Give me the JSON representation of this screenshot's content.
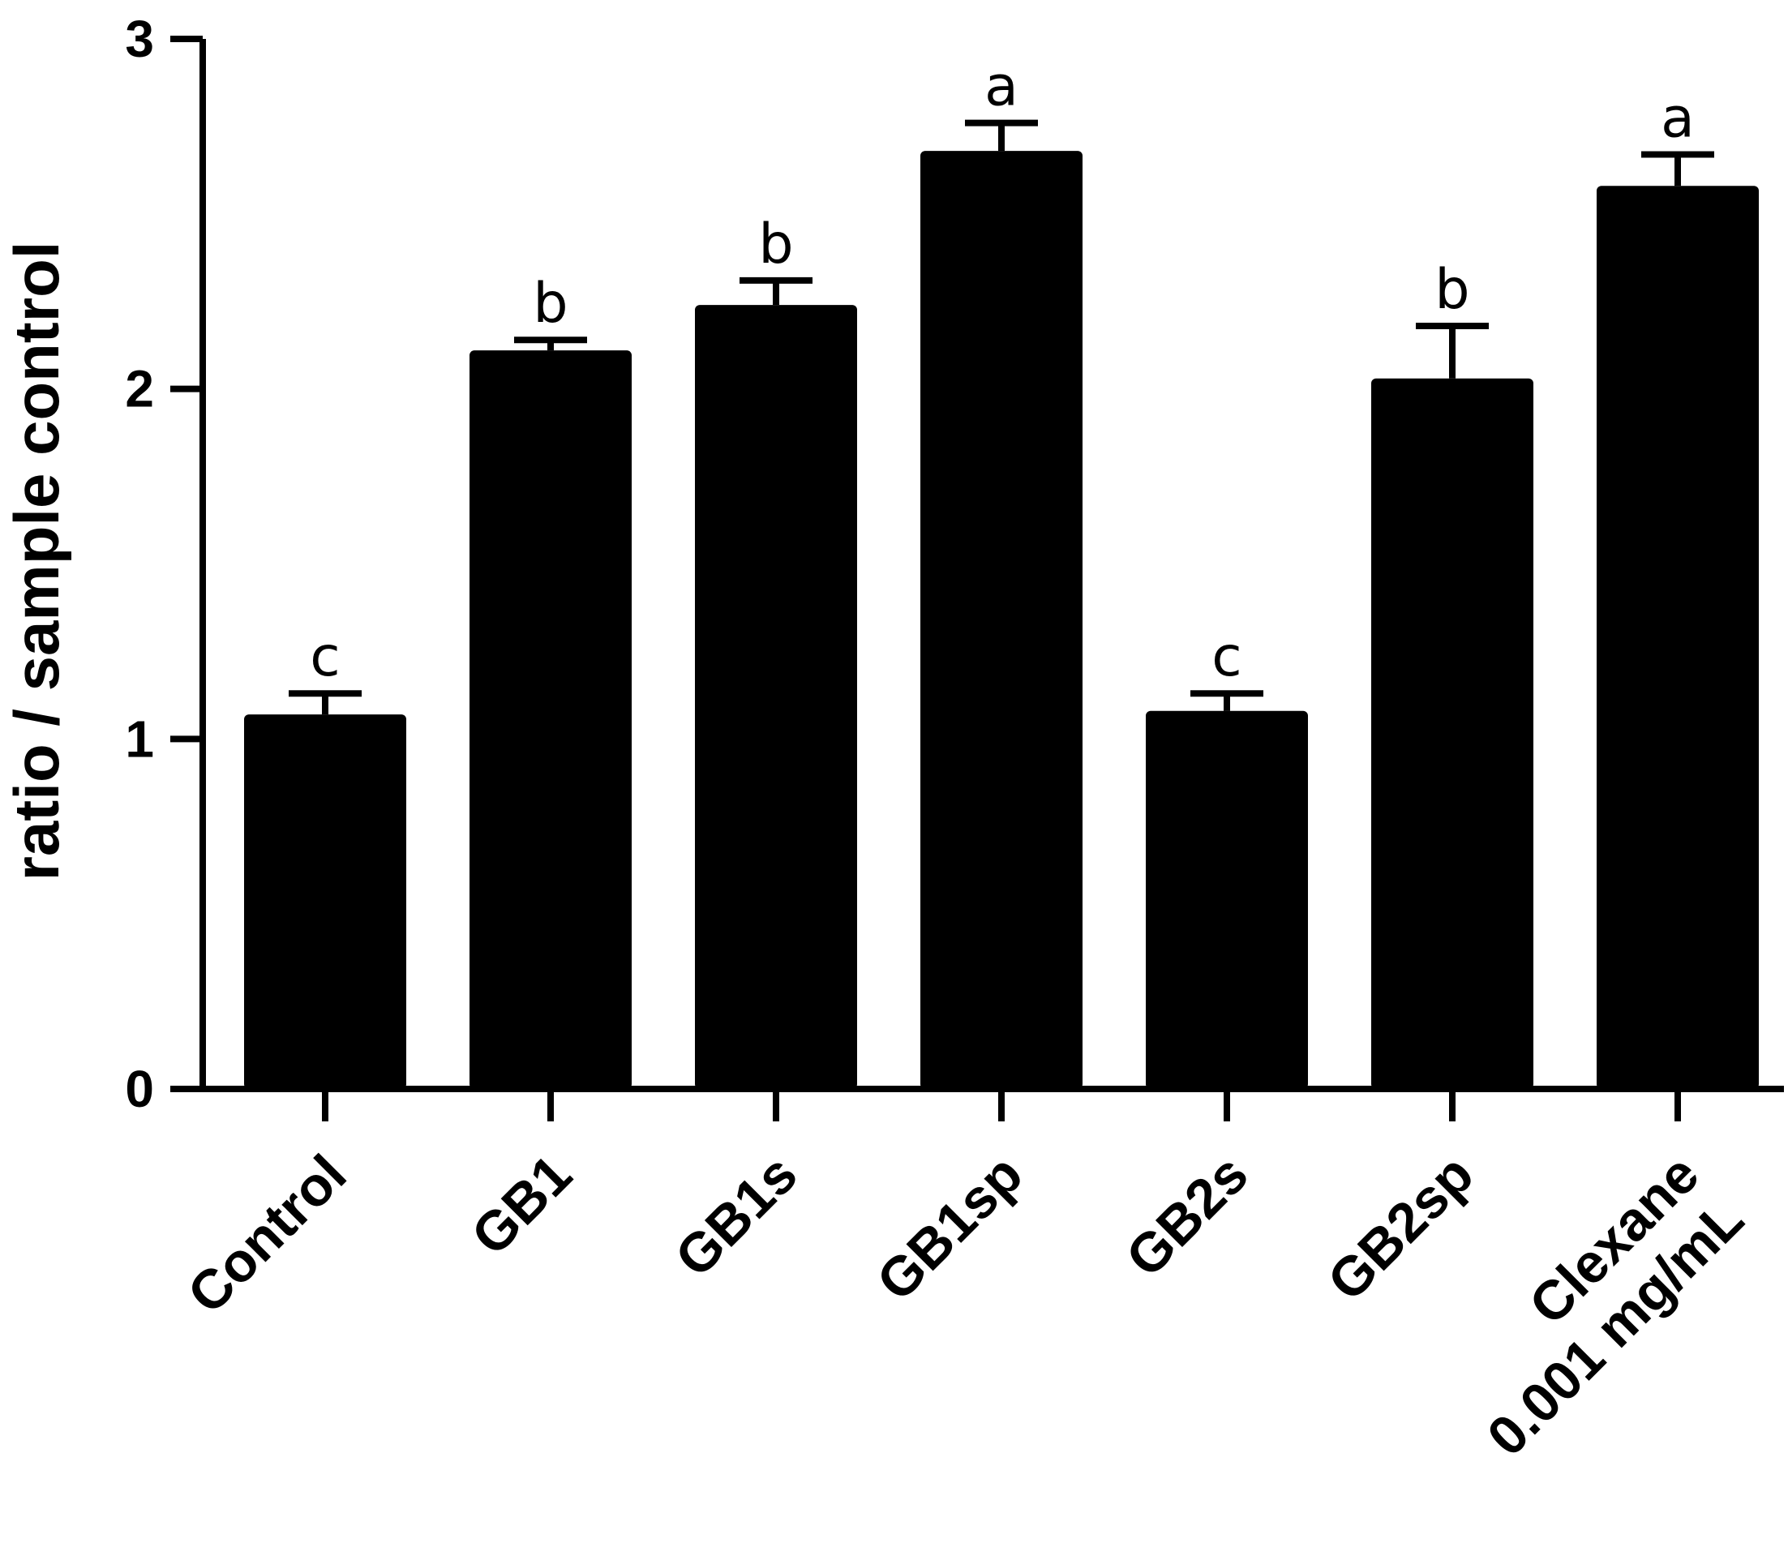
{
  "chart_data": {
    "type": "bar",
    "ylabel": "ratio / sample control",
    "xlabel": "",
    "ylim": [
      0,
      3
    ],
    "yticks": [
      0,
      1,
      2,
      3
    ],
    "categories": [
      [
        "Control"
      ],
      [
        "GB1"
      ],
      [
        "GB1s"
      ],
      [
        "GB1sp"
      ],
      [
        "GB2s"
      ],
      [
        "GB2sp"
      ],
      [
        "Clexane",
        "0.001 mg/mL"
      ]
    ],
    "values": [
      1.07,
      2.11,
      2.24,
      2.68,
      1.08,
      2.03,
      2.58
    ],
    "errors": [
      0.06,
      0.03,
      0.07,
      0.08,
      0.05,
      0.15,
      0.09
    ],
    "significance": [
      "c",
      "b",
      "b",
      "a",
      "c",
      "b",
      "a"
    ],
    "bar_color": "#000000"
  }
}
